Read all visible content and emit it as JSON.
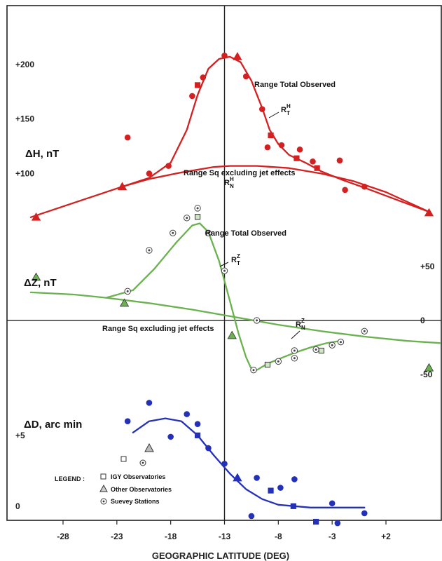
{
  "chart_data": {
    "type": "scatter",
    "xlabel": "GEOGRAPHIC LATITUDE (DEG)",
    "x_ticks": [
      "-28",
      "-23",
      "-18",
      "-13",
      "-8",
      "-3",
      "+2"
    ],
    "xlim": [
      -31.0,
      7.0
    ],
    "panels": [
      {
        "id": "dH",
        "label": "ΔH, nT",
        "color": "#d42020",
        "ylim": [
          47,
          214
        ],
        "y_ticks": [
          {
            "v": 200,
            "t": "+200"
          },
          {
            "v": 150,
            "t": "+150"
          },
          {
            "v": 100,
            "t": "+100"
          }
        ],
        "annotations": [
          "Range Total Observed",
          "Range Sq excluding jet effects"
        ],
        "curve_labels": [
          {
            "sym": "R",
            "sup": "H",
            "sub": "T"
          },
          {
            "sym": "R",
            "sup": "H",
            "sub": "N"
          }
        ],
        "curves": [
          {
            "name": "total",
            "points": [
              [
                -31.0,
                60
              ],
              [
                -22.5,
                88
              ],
              [
                -20.0,
                96
              ],
              [
                -18.0,
                110
              ],
              [
                -16.5,
                140
              ],
              [
                -15.5,
                172
              ],
              [
                -14.5,
                196
              ],
              [
                -13.5,
                205
              ],
              [
                -12.5,
                207
              ],
              [
                -11.5,
                202
              ],
              [
                -10.5,
                185
              ],
              [
                -9.5,
                160
              ],
              [
                -8.8,
                140
              ],
              [
                -8.0,
                127
              ],
              [
                -7.0,
                117
              ],
              [
                -5.5,
                110
              ],
              [
                -4.0,
                102
              ],
              [
                -2.0,
                94
              ],
              [
                0.0,
                87
              ],
              [
                3.0,
                76
              ],
              [
                6.0,
                65
              ]
            ]
          },
          {
            "name": "sq",
            "points": [
              [
                -22.5,
                88
              ],
              [
                -20.0,
                95
              ],
              [
                -17.0,
                101
              ],
              [
                -14.0,
                106
              ],
              [
                -12.5,
                107
              ],
              [
                -10.0,
                107
              ],
              [
                -7.0,
                105
              ],
              [
                -4.0,
                100
              ],
              [
                -1.0,
                93
              ],
              [
                2.0,
                83
              ],
              [
                6.0,
                65
              ]
            ]
          }
        ],
        "points": {
          "survey": [
            [
              -22.0,
              133
            ],
            [
              -20.0,
              100
            ],
            [
              -18.2,
              107
            ],
            [
              -16.0,
              171
            ],
            [
              -15.0,
              188
            ],
            [
              -13.0,
              208
            ],
            [
              -11.0,
              189
            ],
            [
              -9.5,
              159
            ],
            [
              -9.0,
              124
            ],
            [
              -7.7,
              126
            ],
            [
              -6.0,
              122
            ],
            [
              -4.8,
              111
            ],
            [
              -2.3,
              112
            ],
            [
              -1.8,
              85
            ],
            [
              0.0,
              88
            ]
          ],
          "igy": [
            [
              -15.5,
              181
            ],
            [
              -8.7,
              135
            ],
            [
              -6.3,
              114
            ],
            [
              -4.4,
              105
            ]
          ],
          "other": [
            [
              -22.5,
              88
            ],
            [
              -11.8,
              207
            ],
            [
              6.0,
              64
            ],
            [
              -30.5,
              60
            ]
          ]
        }
      },
      {
        "id": "dZ",
        "label": "ΔZ, nT",
        "color": "#6ab14f",
        "ylim": [
          -80,
          102
        ],
        "right_ticks": [
          {
            "v": 50,
            "t": "+50"
          },
          {
            "v": 0,
            "t": "0"
          },
          {
            "v": -50,
            "t": "-50"
          }
        ],
        "annotations": [
          "Range Total Observed",
          "Range Sq excluding jet effects"
        ],
        "curve_labels": [
          {
            "sym": "R",
            "sup": "Z",
            "sub": "T"
          },
          {
            "sym": "R",
            "sup": "Z",
            "sub": "N"
          }
        ],
        "curves": [
          {
            "name": "total",
            "points": [
              [
                -24.0,
                21
              ],
              [
                -21.5,
                28
              ],
              [
                -19.5,
                48
              ],
              [
                -17.5,
                72
              ],
              [
                -16.0,
                88
              ],
              [
                -15.3,
                90
              ],
              [
                -14.5,
                82
              ],
              [
                -13.5,
                55
              ],
              [
                -12.5,
                18
              ],
              [
                -11.7,
                -12
              ],
              [
                -11.0,
                -34
              ],
              [
                -10.5,
                -45
              ],
              [
                -10.0,
                -46
              ],
              [
                -9.0,
                -40
              ],
              [
                -7.5,
                -34
              ],
              [
                -6.5,
                -30
              ],
              [
                -5.0,
                -25
              ],
              [
                -3.5,
                -21
              ],
              [
                -2.3,
                -19
              ]
            ]
          },
          {
            "name": "sq",
            "points": [
              [
                -31.0,
                26
              ],
              [
                -27.0,
                24
              ],
              [
                -24.0,
                21
              ],
              [
                -20.0,
                16
              ],
              [
                -16.0,
                10
              ],
              [
                -12.0,
                3
              ],
              [
                -8.0,
                -4
              ],
              [
                -4.0,
                -10
              ],
              [
                0.0,
                -15
              ],
              [
                4.0,
                -19
              ],
              [
                7.0,
                -21
              ]
            ]
          }
        ],
        "points": {
          "survey": [
            [
              -22.0,
              27
            ],
            [
              -20.0,
              65
            ],
            [
              -17.8,
              81
            ],
            [
              -16.5,
              95
            ],
            [
              -15.5,
              104
            ],
            [
              -14.5,
              81
            ],
            [
              -13.0,
              46
            ],
            [
              -10.0,
              0
            ],
            [
              -10.3,
              -46
            ],
            [
              -8.0,
              -38
            ],
            [
              -6.5,
              -35
            ],
            [
              -6.5,
              -28
            ],
            [
              -4.5,
              -27
            ],
            [
              -3.0,
              -23
            ],
            [
              -2.2,
              -20
            ],
            [
              0.0,
              -10
            ]
          ],
          "igy": [
            [
              -15.5,
              96
            ],
            [
              -9.0,
              -41
            ],
            [
              -4.0,
              -28
            ]
          ],
          "other": [
            [
              -22.3,
              16
            ],
            [
              -12.3,
              -14
            ],
            [
              6.0,
              -44
            ],
            [
              -30.5,
              40
            ]
          ]
        }
      },
      {
        "id": "dD",
        "label": "ΔD, arc  min",
        "color": "#2430b8",
        "ylim": [
          -1.0,
          9.5
        ],
        "y_ticks": [
          {
            "v": 5,
            "t": "+5"
          },
          {
            "v": 0,
            "t": "0"
          }
        ],
        "curves": [
          {
            "name": "fit",
            "points": [
              [
                -21.5,
                5.2
              ],
              [
                -20.0,
                6.0
              ],
              [
                -18.5,
                6.2
              ],
              [
                -17.0,
                6.0
              ],
              [
                -15.5,
                5.0
              ],
              [
                -14.0,
                3.6
              ],
              [
                -12.5,
                2.3
              ],
              [
                -11.0,
                1.2
              ],
              [
                -9.5,
                0.5
              ],
              [
                -8.0,
                0.1
              ],
              [
                -6.5,
                0.0
              ],
              [
                -5.0,
                -0.1
              ],
              [
                -3.0,
                -0.1
              ],
              [
                0.0,
                -0.1
              ]
            ]
          }
        ],
        "points": {
          "survey": [
            [
              -22.0,
              6.0
            ],
            [
              -20.0,
              7.3
            ],
            [
              -18.0,
              4.9
            ],
            [
              -16.5,
              6.5
            ],
            [
              -15.5,
              5.8
            ],
            [
              -14.5,
              4.1
            ],
            [
              -13.0,
              3.0
            ],
            [
              -10.5,
              -0.7
            ],
            [
              -10.0,
              2.0
            ],
            [
              -7.8,
              1.3
            ],
            [
              -6.5,
              1.9
            ],
            [
              -3.0,
              0.2
            ],
            [
              -2.5,
              -1.2
            ],
            [
              0.0,
              -0.5
            ]
          ],
          "igy": [
            [
              -15.5,
              5.0
            ],
            [
              -8.7,
              1.1
            ],
            [
              -6.6,
              0.0
            ],
            [
              -4.5,
              -1.1
            ]
          ],
          "other": [
            [
              -11.8,
              2.0
            ]
          ]
        }
      }
    ],
    "legend": {
      "title": "LEGEND :",
      "items": [
        {
          "symbol": "square",
          "label": "IGY  Observatories"
        },
        {
          "symbol": "triangle",
          "label": "Other  Observatories"
        },
        {
          "symbol": "circle",
          "label": "Suevey Stations"
        }
      ]
    }
  }
}
